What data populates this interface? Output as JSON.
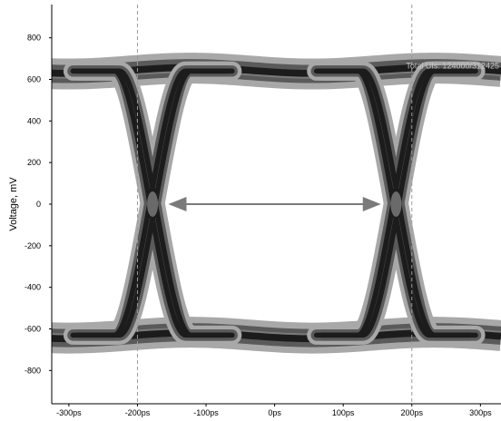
{
  "chart_data": {
    "type": "eye-diagram",
    "title": "",
    "xlabel": "",
    "ylabel": "Voltage, mV",
    "x_unit": "ps",
    "xlim": [
      -325,
      330
    ],
    "ylim": [
      -960,
      960
    ],
    "x_ticks": [
      -300,
      -200,
      -100,
      0,
      100,
      200,
      300
    ],
    "x_tick_labels": [
      "-300ps",
      "-200ps",
      "-100ps",
      "0ps",
      "100ps",
      "200ps",
      "300ps"
    ],
    "y_ticks": [
      800,
      600,
      400,
      200,
      0,
      -200,
      -400,
      -600,
      -800
    ],
    "y_tick_labels": [
      "800",
      "600",
      "400",
      "200",
      "0",
      "-200",
      "-400",
      "-600",
      "-800"
    ],
    "vertical_gridlines_x": [
      -200,
      200
    ],
    "grid": false,
    "legend": "none",
    "annotation": "Total UIs: 124000/312425",
    "logic_levels_mV": {
      "high": 640,
      "low": -630
    },
    "eye_crossings": [
      {
        "x": -178,
        "y": 0
      },
      {
        "x": 177,
        "y": 0
      }
    ],
    "eye_width_arrow": {
      "x_start": -155,
      "x_end": 155,
      "y": 0
    },
    "colors": {
      "trace_dark": "#1c1c1c",
      "trace_mid": "#5a5a5a",
      "trace_light": "#a8a8a8",
      "gridline": "#9a9a9a",
      "arrow": "#7a7a7a",
      "annotation": "#c8c8c8"
    }
  }
}
